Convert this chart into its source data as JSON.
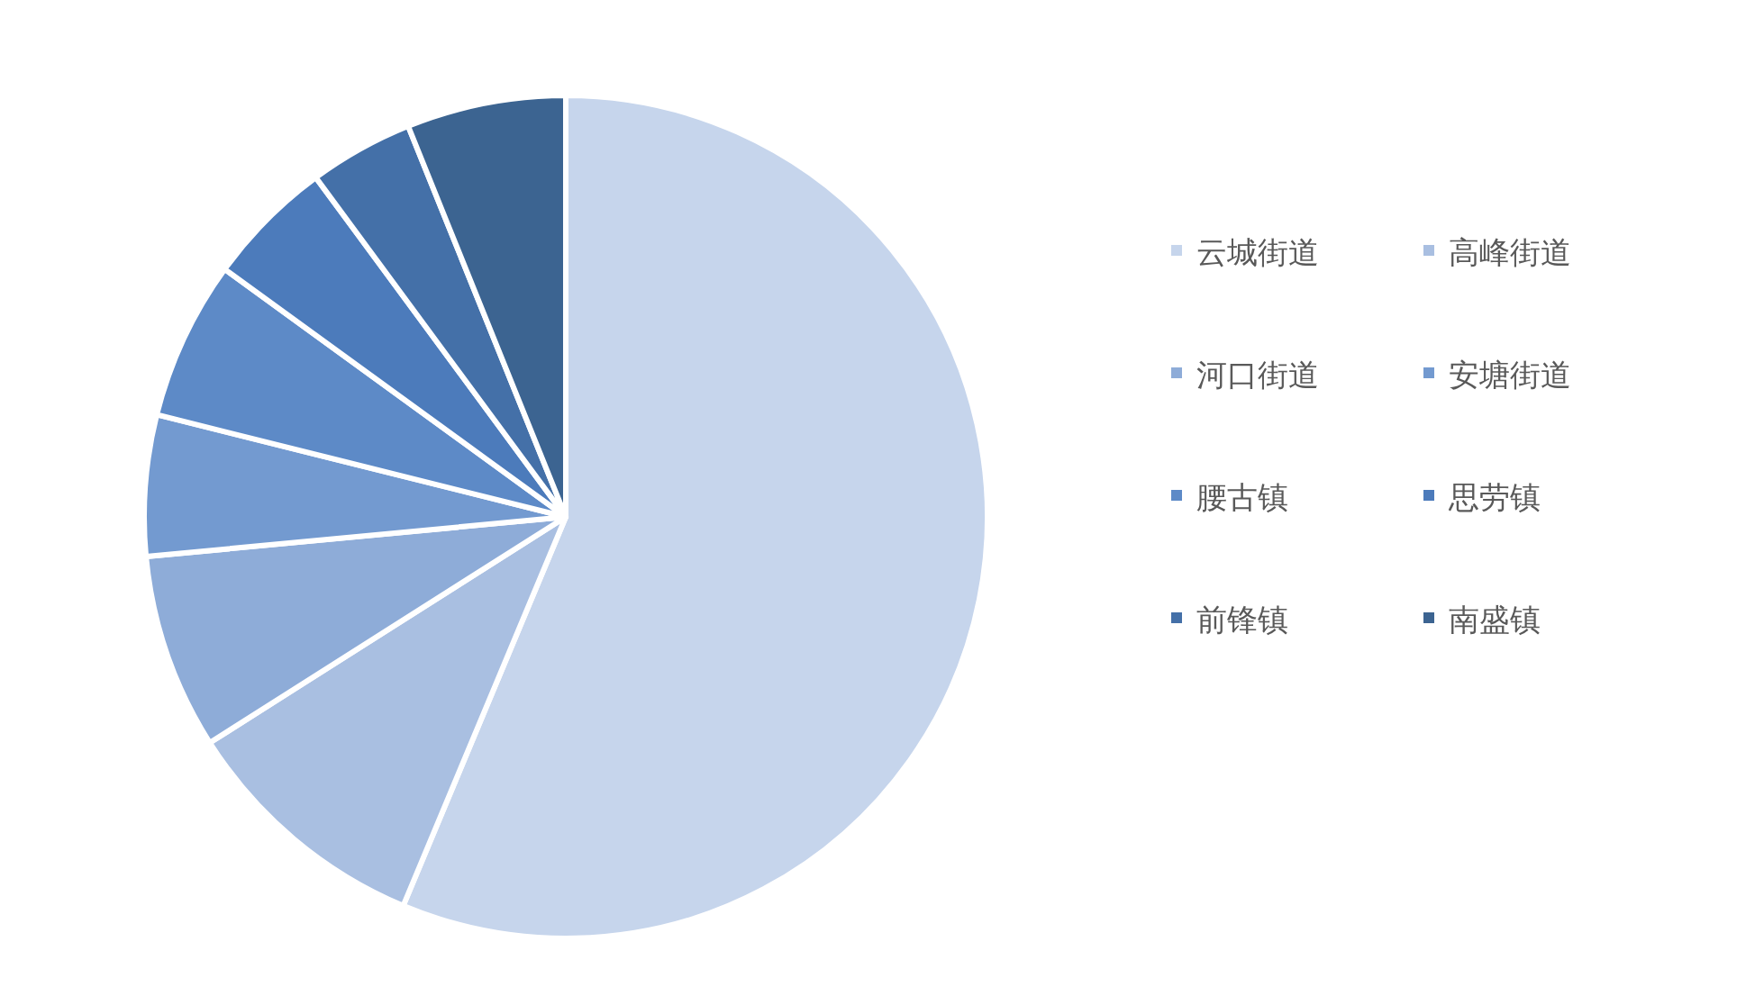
{
  "chart_data": {
    "type": "pie",
    "legend": "right",
    "categories": [
      "云城街道",
      "高峰街道",
      "河口街道",
      "安塘街道",
      "腰古镇",
      "思劳镇",
      "前锋镇",
      "南盛镇"
    ],
    "values": [
      56.3,
      9.7,
      7.5,
      5.4,
      6.1,
      4.9,
      4.0,
      6.1
    ],
    "colors": [
      "#c6d5ec",
      "#a9bfe1",
      "#8eacd8",
      "#739ad0",
      "#5d8ac7",
      "#4c7bbb",
      "#4470a8",
      "#3c6491"
    ]
  }
}
